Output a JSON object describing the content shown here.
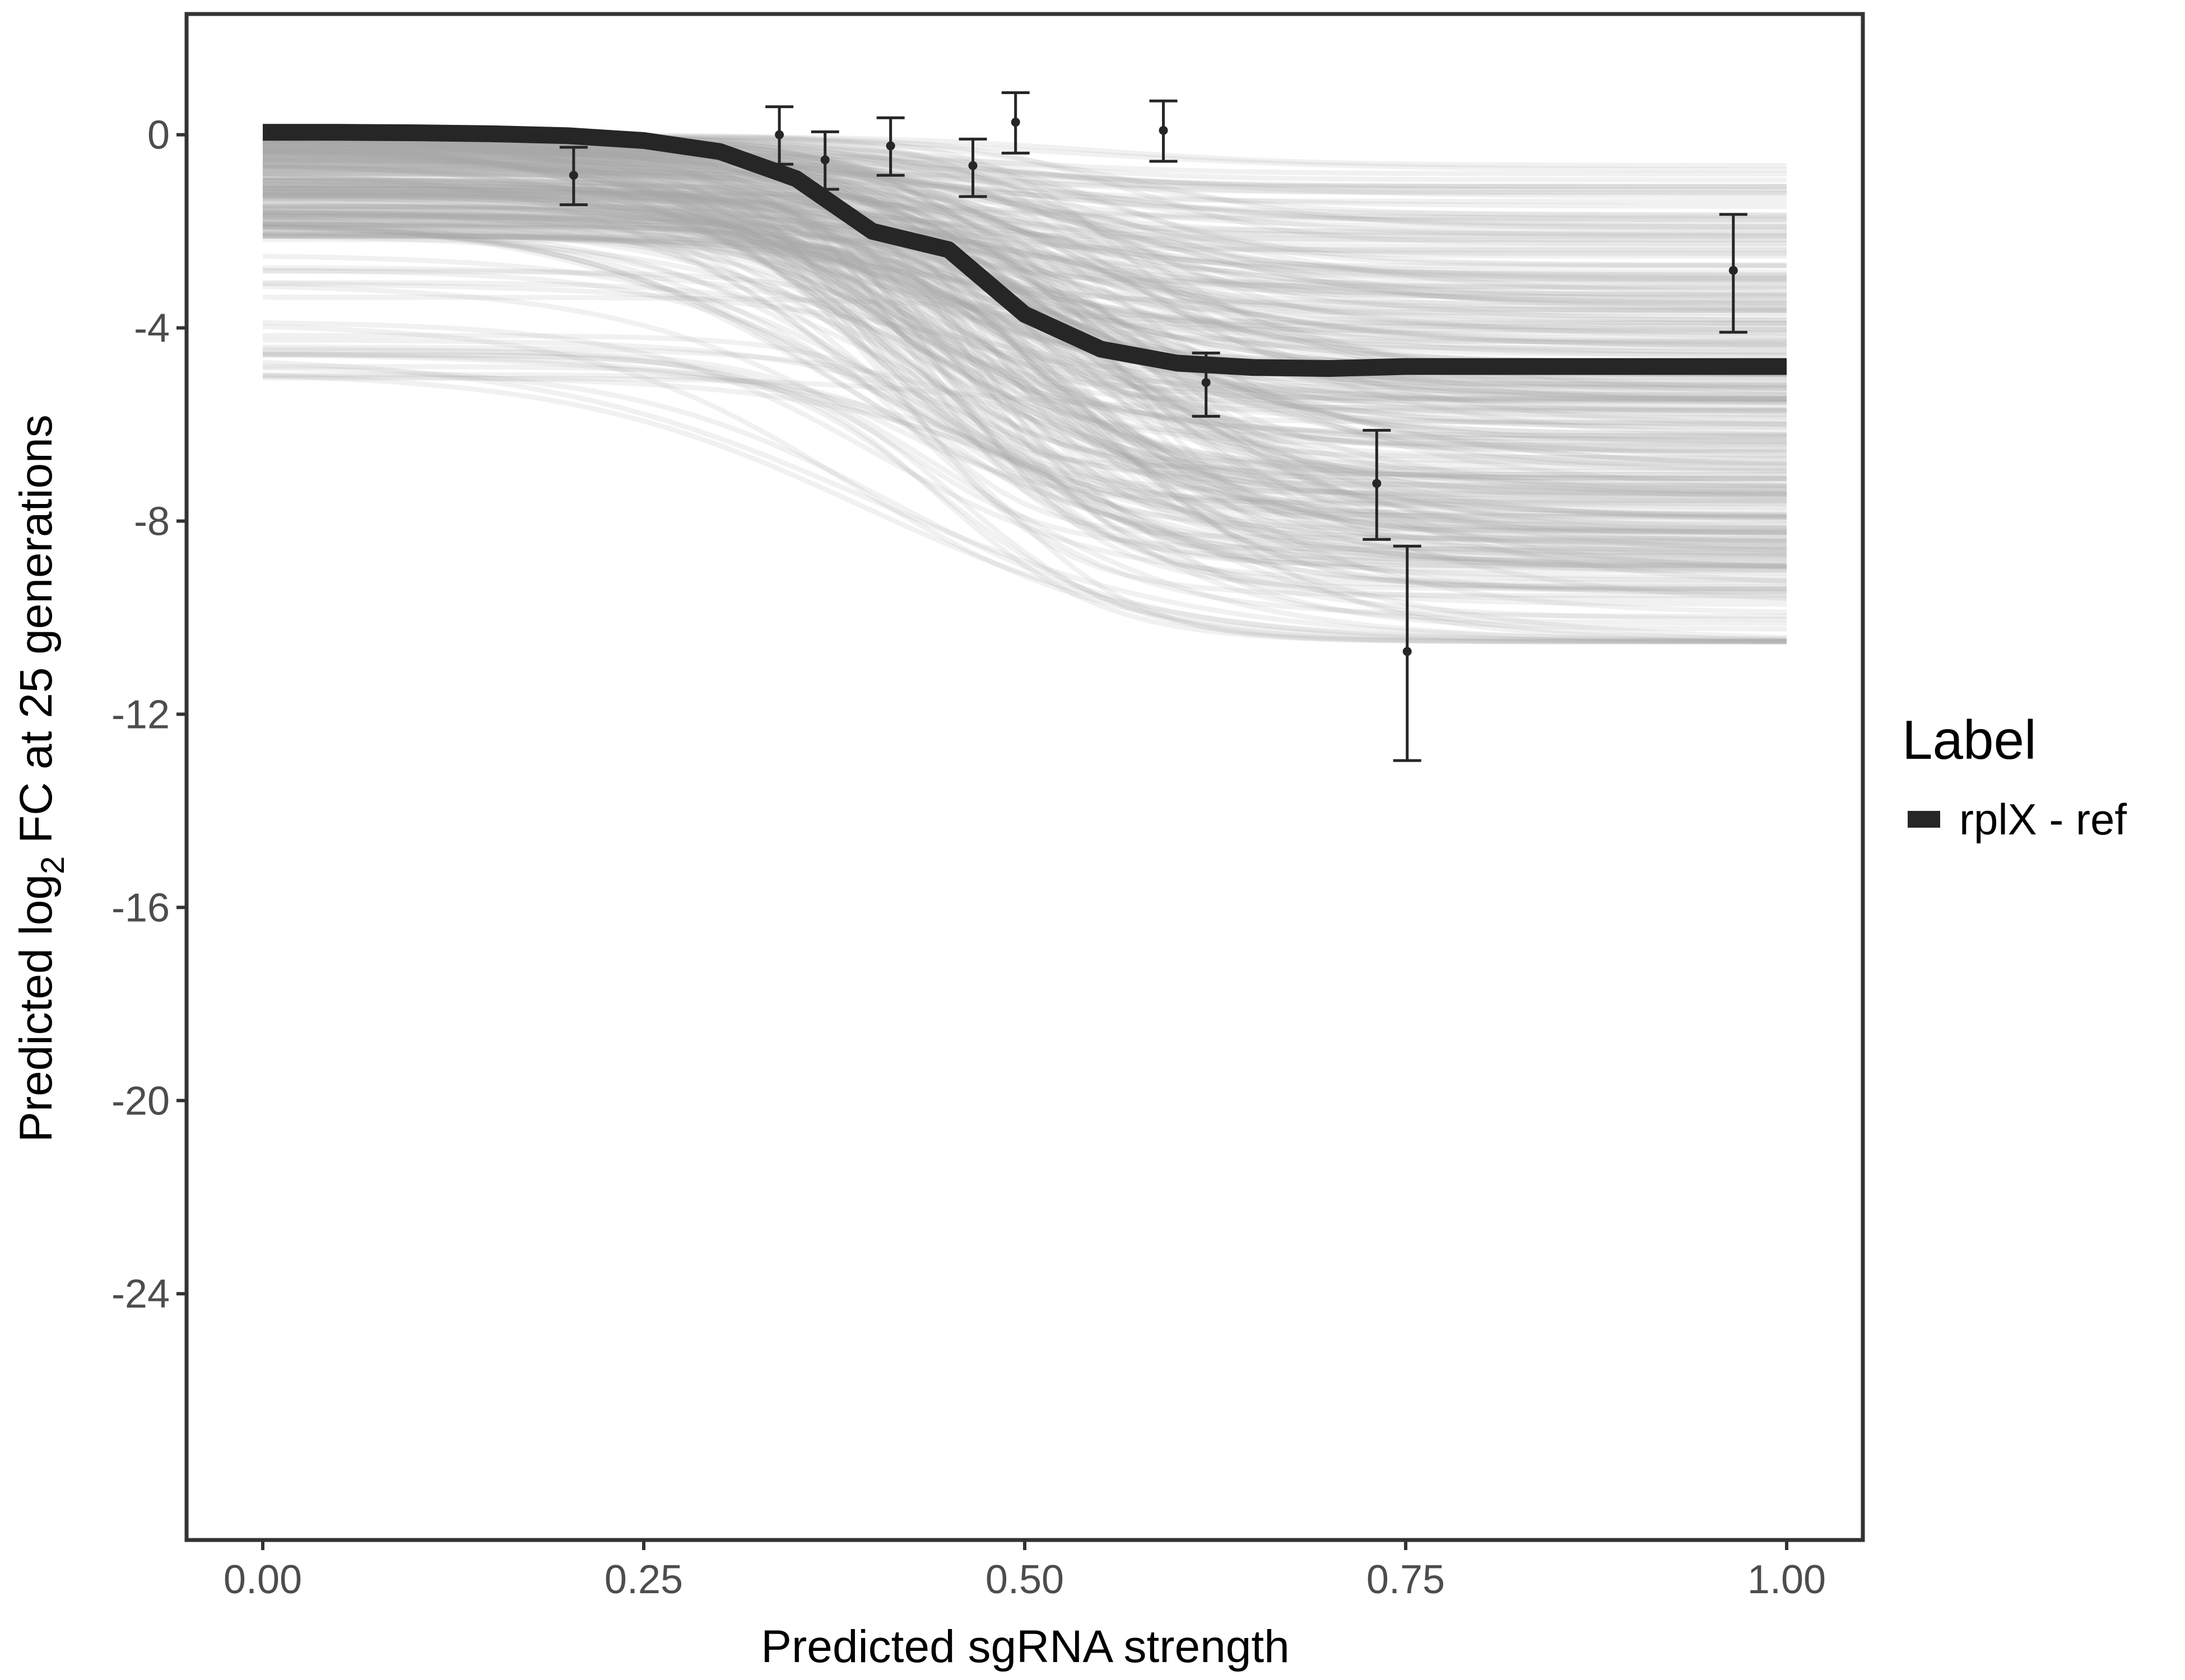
{
  "chart_data": {
    "type": "line",
    "xlabel": "Predicted sgRNA strength",
    "ylabel_pre": "Predicted  log",
    "ylabel_sub": "2",
    "ylabel_post": " FC at 25 generations",
    "xlim": [
      -0.05,
      1.05
    ],
    "ylim": [
      -29.1,
      2.5
    ],
    "x_ticks": [
      "0.00",
      "0.25",
      "0.50",
      "0.75",
      "1.00"
    ],
    "x_tick_values": [
      0,
      0.25,
      0.5,
      0.75,
      1
    ],
    "y_ticks": [
      "0",
      "-4",
      "-8",
      "-12",
      "-16",
      "-20",
      "-24"
    ],
    "y_tick_values": [
      0,
      -4,
      -8,
      -12,
      -16,
      -20,
      -24
    ],
    "grid": false,
    "legend": {
      "title": "Label",
      "position": "right",
      "entries": [
        {
          "label": "rplX - ref",
          "color": "#262626"
        }
      ]
    },
    "colors": {
      "main_curve": "#262626",
      "posterior_samples": "#aaaaaa",
      "points": "#262626",
      "panel_border": "#333333"
    },
    "main_curve": {
      "name": "rplX - ref",
      "x": [
        0,
        0.05,
        0.1,
        0.15,
        0.2,
        0.25,
        0.3,
        0.35,
        0.4,
        0.45,
        0.5,
        0.55,
        0.6,
        0.65,
        0.7,
        0.75,
        0.8,
        0.85,
        0.9,
        0.95,
        1.0
      ],
      "y": [
        0.05,
        0.05,
        0.04,
        0.02,
        -0.02,
        -0.12,
        -0.35,
        -0.91,
        -2.0,
        -2.38,
        -3.72,
        -4.44,
        -4.73,
        -4.82,
        -4.84,
        -4.8,
        -4.8,
        -4.8,
        -4.8,
        -4.8,
        -4.8
      ]
    },
    "posterior_samples": {
      "count": 300,
      "y_at_0_range": [
        -5.1,
        0.05
      ],
      "y_at_1_range": [
        -10.5,
        -0.35
      ]
    },
    "points": [
      {
        "x": 0.204,
        "y": -0.84,
        "ymin": -1.45,
        "ymax": -0.26
      },
      {
        "x": 0.339,
        "y": 0.0,
        "ymin": -0.61,
        "ymax": 0.58
      },
      {
        "x": 0.369,
        "y": -0.52,
        "ymin": -1.13,
        "ymax": 0.06
      },
      {
        "x": 0.412,
        "y": -0.23,
        "ymin": -0.84,
        "ymax": 0.35
      },
      {
        "x": 0.466,
        "y": -0.64,
        "ymin": -1.28,
        "ymax": -0.09
      },
      {
        "x": 0.494,
        "y": 0.26,
        "ymin": -0.38,
        "ymax": 0.87
      },
      {
        "x": 0.591,
        "y": 0.09,
        "ymin": -0.55,
        "ymax": 0.7
      },
      {
        "x": 0.619,
        "y": -5.13,
        "ymin": -5.83,
        "ymax": -4.52
      },
      {
        "x": 0.731,
        "y": -7.22,
        "ymin": -8.38,
        "ymax": -6.12
      },
      {
        "x": 0.751,
        "y": -10.7,
        "ymin": -12.96,
        "ymax": -8.52
      },
      {
        "x": 0.965,
        "y": -2.81,
        "ymin": -4.09,
        "ymax": -1.65
      }
    ]
  }
}
